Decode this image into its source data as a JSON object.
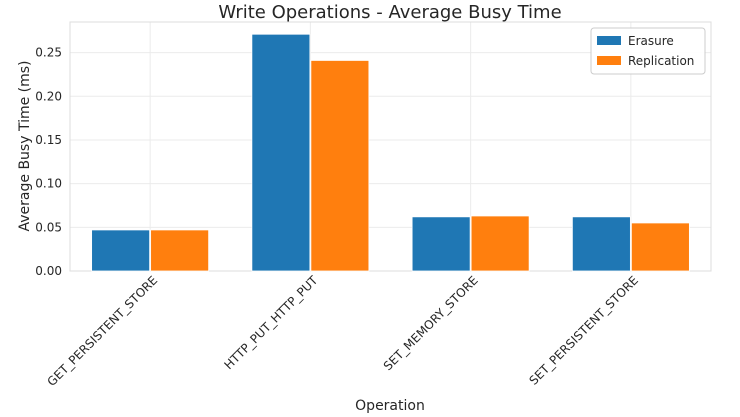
{
  "chart_data": {
    "type": "bar",
    "title": "Write Operations - Average Busy Time",
    "xlabel": "Operation",
    "ylabel": "Average Busy Time (ms)",
    "categories": [
      "GET_PERSISTENT_STORE",
      "HTTP_PUT_HTTP_PUT",
      "SET_MEMORY_STORE",
      "SET_PERSISTENT_STORE"
    ],
    "series": [
      {
        "name": "Erasure",
        "color": "#1f77b4",
        "values": [
          0.047,
          0.271,
          0.062,
          0.062
        ]
      },
      {
        "name": "Replication",
        "color": "#ff7f0e",
        "values": [
          0.047,
          0.241,
          0.063,
          0.055
        ]
      }
    ],
    "yticks": [
      "0.00",
      "0.05",
      "0.10",
      "0.15",
      "0.20",
      "0.25"
    ],
    "ylim": [
      0,
      0.285
    ],
    "grid": true,
    "legend_position": "top-right"
  }
}
